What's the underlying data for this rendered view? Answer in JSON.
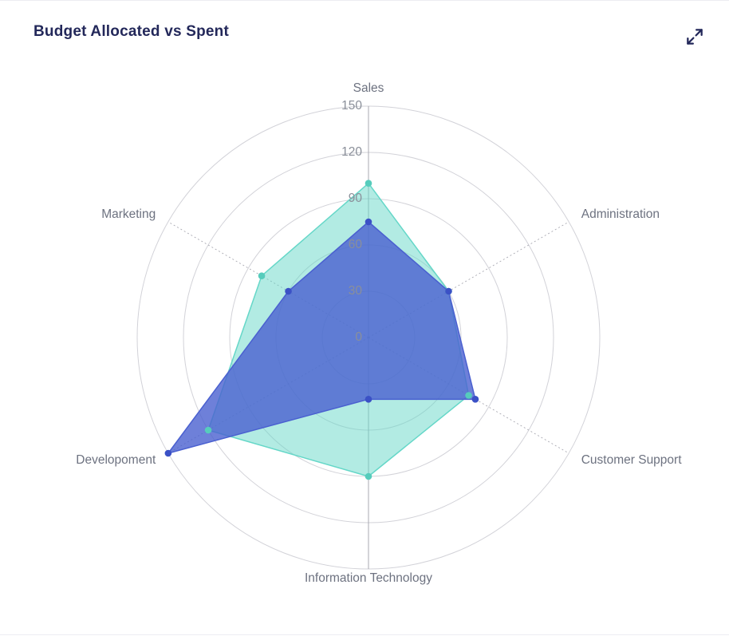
{
  "card": {
    "title": "Budget Allocated vs Spent"
  },
  "chart_data": {
    "type": "radar",
    "title": "Budget Allocated vs Spent",
    "categories": [
      "Sales",
      "Administration",
      "Customer Support",
      "Information Technology",
      "Developoment",
      "Marketing"
    ],
    "series": [
      {
        "name": "Allocated",
        "values": [
          100,
          60,
          75,
          90,
          120,
          80
        ],
        "color": "#65d7c8",
        "marker_color": "#56ccbc",
        "fill_opacity": 0.5
      },
      {
        "name": "Spent",
        "values": [
          75,
          60,
          80,
          40,
          150,
          60
        ],
        "color": "#4a60d0",
        "marker_color": "#3b51c6",
        "fill_opacity": 0.8
      }
    ],
    "radial_axis": {
      "min": 0,
      "max": 150,
      "tick_interval": 30,
      "ticks": [
        0,
        30,
        60,
        90,
        120,
        150
      ]
    },
    "legend_position": "none",
    "grid": {
      "rings": "solid",
      "spokes": "dashed"
    },
    "style": {
      "axis_label_color": "#6d7280",
      "tick_label_color": "#8a8f99",
      "grid_color": "#d2d2d8",
      "spoke_color": "#a9a9b2",
      "title_color": "#23285a"
    }
  }
}
